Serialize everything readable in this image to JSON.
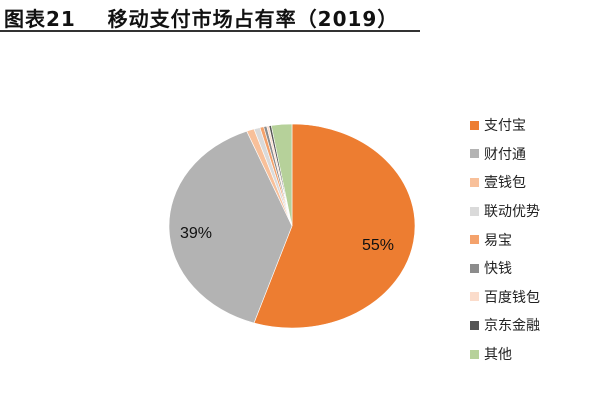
{
  "title": "图表21    移动支付市场占有率（2019）",
  "chart_data": {
    "type": "pie",
    "title": "移动支付市场占有率（2019）",
    "categories": [
      "支付宝",
      "财付通",
      "壹钱包",
      "联动优势",
      "易宝",
      "快钱",
      "百度钱包",
      "京东金融",
      "其他"
    ],
    "values": [
      55,
      39,
      1.0,
      0.8,
      0.5,
      0.4,
      0.3,
      0.3,
      2.7
    ],
    "colors": [
      "#ED7D31",
      "#B3B3B3",
      "#F8C09A",
      "#DADADA",
      "#F4A26C",
      "#8C8C8C",
      "#FBDCCB",
      "#555555",
      "#B6D19A"
    ],
    "data_labels": [
      {
        "category": "支付宝",
        "text": "55%"
      },
      {
        "category": "财付通",
        "text": "39%"
      }
    ],
    "legend_position": "right",
    "start_angle_deg": 0,
    "direction": "clockwise"
  },
  "labels": {
    "alipay": "55%",
    "tenpay": "39%"
  },
  "legend": [
    {
      "label": "支付宝",
      "color": "#ED7D31"
    },
    {
      "label": "财付通",
      "color": "#B3B3B3"
    },
    {
      "label": "壹钱包",
      "color": "#F8C09A"
    },
    {
      "label": "联动优势",
      "color": "#DADADA"
    },
    {
      "label": "易宝",
      "color": "#F4A26C"
    },
    {
      "label": "快钱",
      "color": "#8C8C8C"
    },
    {
      "label": "百度钱包",
      "color": "#FBDCCB"
    },
    {
      "label": "京东金融",
      "color": "#555555"
    },
    {
      "label": "其他",
      "color": "#B6D19A"
    }
  ]
}
